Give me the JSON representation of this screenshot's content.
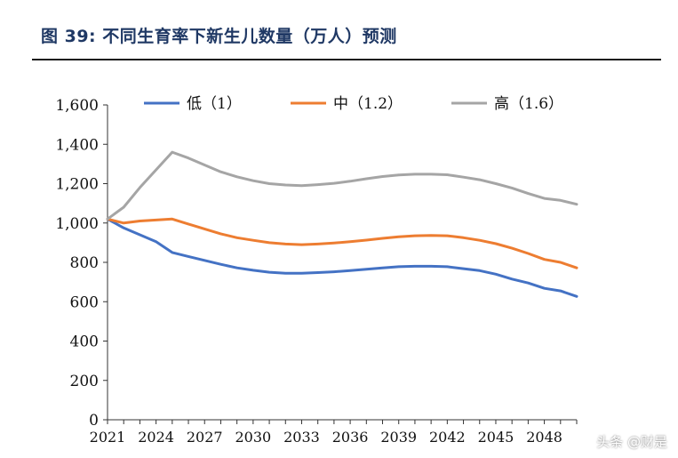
{
  "header": {
    "title": "图 39: 不同生育率下新生儿数量（万人）预测"
  },
  "watermark": "头条 @财是",
  "chart_data": {
    "type": "line",
    "title": "图 39: 不同生育率下新生儿数量（万人）预测",
    "xlabel": "",
    "ylabel": "",
    "xlim": [
      2021,
      2050
    ],
    "ylim": [
      0,
      1600
    ],
    "yticks": [
      0,
      200,
      400,
      600,
      800,
      1000,
      1200,
      1400,
      1600
    ],
    "ytick_labels": [
      "0",
      "200",
      "400",
      "600",
      "800",
      "1,000",
      "1,200",
      "1,400",
      "1,600"
    ],
    "xticks": [
      2021,
      2024,
      2027,
      2030,
      2033,
      2036,
      2039,
      2042,
      2045,
      2048
    ],
    "xtick_labels": [
      "2021",
      "2024",
      "2027",
      "2030",
      "2033",
      "2036",
      "2039",
      "2042",
      "2045",
      "2048"
    ],
    "grid": false,
    "legend": "top",
    "x": [
      2021,
      2022,
      2023,
      2024,
      2025,
      2026,
      2027,
      2028,
      2029,
      2030,
      2031,
      2032,
      2033,
      2034,
      2035,
      2036,
      2037,
      2038,
      2039,
      2040,
      2041,
      2042,
      2043,
      2044,
      2045,
      2046,
      2047,
      2048,
      2049,
      2050
    ],
    "series": [
      {
        "name": "低（1）",
        "color": "#4472c4",
        "values": [
          1020,
          975,
          940,
          905,
          850,
          830,
          810,
          790,
          772,
          760,
          750,
          745,
          745,
          748,
          752,
          758,
          765,
          772,
          778,
          780,
          780,
          778,
          768,
          758,
          740,
          715,
          695,
          668,
          655,
          627
        ]
      },
      {
        "name": "中（1.2）",
        "color": "#ed7d31",
        "values": [
          1020,
          1000,
          1010,
          1015,
          1020,
          995,
          970,
          945,
          925,
          912,
          900,
          893,
          890,
          893,
          898,
          905,
          913,
          922,
          930,
          935,
          937,
          935,
          925,
          912,
          895,
          872,
          845,
          815,
          800,
          772
        ]
      },
      {
        "name": "高（1.6）",
        "color": "#a5a5a5",
        "values": [
          1020,
          1080,
          1180,
          1270,
          1360,
          1330,
          1295,
          1260,
          1235,
          1215,
          1200,
          1193,
          1190,
          1195,
          1202,
          1212,
          1225,
          1236,
          1244,
          1248,
          1248,
          1245,
          1233,
          1220,
          1200,
          1178,
          1150,
          1125,
          1115,
          1095
        ]
      }
    ]
  }
}
